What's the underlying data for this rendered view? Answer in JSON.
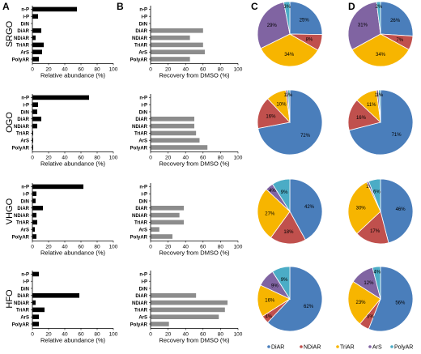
{
  "panel_letters": [
    "A",
    "B",
    "C",
    "D"
  ],
  "sample_names": [
    "SRGO",
    "OGO",
    "VHGO",
    "HFO"
  ],
  "colors": {
    "bar_black": "#000000",
    "bar_gray": "#8c8c8c",
    "pie": [
      "#4A7EBB",
      "#C0504D",
      "#F7B500",
      "#8064A2",
      "#4BACC6"
    ]
  },
  "legend": [
    "DiAR",
    "NDiAR",
    "TriAR",
    "ArS",
    "PolyAR"
  ],
  "chart_data": [
    {
      "type": "bar",
      "orientation": "horizontal",
      "panel": "A",
      "categories": [
        "n-P",
        "i-P",
        "DiN",
        "DiAR",
        "NDiAR",
        "TriAR",
        "ArS",
        "PolyAR"
      ],
      "xlabel": "Relative abundance (%)",
      "xlim": [
        0,
        100
      ],
      "xticks": [
        "0",
        "20",
        "40",
        "60",
        "80",
        "100"
      ],
      "rows": [
        {
          "sample": "SRGO",
          "values": [
            55,
            7,
            0,
            11,
            4,
            14,
            12,
            8
          ]
        },
        {
          "sample": "OGO",
          "values": [
            70,
            7,
            6,
            11,
            6,
            1,
            1,
            1
          ]
        },
        {
          "sample": "VHGO",
          "values": [
            63,
            5,
            4,
            13,
            5,
            6,
            3,
            5
          ]
        },
        {
          "sample": "HFO",
          "values": [
            8,
            0,
            0,
            58,
            4,
            15,
            8,
            8
          ]
        }
      ]
    },
    {
      "type": "bar",
      "orientation": "horizontal",
      "panel": "B",
      "categories": [
        "n-P",
        "i-P",
        "DiN",
        "DiAR",
        "NDiAR",
        "TriAR",
        "ArS",
        "PolyAR"
      ],
      "xlabel": "Recovery from DMSO (%)",
      "xlim": [
        0,
        100
      ],
      "xticks": [
        "0",
        "20",
        "40",
        "60",
        "80",
        "100"
      ],
      "rows": [
        {
          "sample": "SRGO",
          "values": [
            0,
            0,
            0,
            60,
            45,
            60,
            62,
            45
          ]
        },
        {
          "sample": "OGO",
          "values": [
            0,
            0,
            0,
            50,
            50,
            52,
            56,
            65
          ]
        },
        {
          "sample": "VHGO",
          "values": [
            0,
            0,
            0,
            38,
            33,
            38,
            10,
            25
          ]
        },
        {
          "sample": "HFO",
          "values": [
            0,
            0,
            0,
            52,
            88,
            85,
            78,
            21
          ]
        }
      ]
    },
    {
      "type": "pie",
      "panel": "C",
      "labels": [
        "DiAR",
        "NDiAR",
        "TriAR",
        "ArS",
        "PolyAR"
      ],
      "pies": [
        {
          "sample": "SRGO",
          "values": [
            25,
            8,
            34,
            29,
            3
          ],
          "value_labels": [
            "25%",
            "8%",
            "34%",
            "29%",
            "3%"
          ]
        },
        {
          "sample": "OGO",
          "values": [
            72,
            16,
            10,
            1,
            1
          ],
          "value_labels": [
            "72%",
            "16%",
            "10%",
            "1%",
            "1%"
          ]
        },
        {
          "sample": "VHGO",
          "values": [
            42,
            18,
            27,
            4,
            9
          ],
          "value_labels": [
            "42%",
            "18%",
            "27%",
            "4%",
            "9%"
          ]
        },
        {
          "sample": "HFO",
          "values": [
            62,
            4,
            16,
            9,
            9
          ],
          "value_labels": [
            "62%",
            "4%",
            "16%",
            "9%",
            "9%"
          ]
        }
      ]
    },
    {
      "type": "pie",
      "panel": "D",
      "labels": [
        "DiAR",
        "NDiAR",
        "TriAR",
        "ArS",
        "PolyAR"
      ],
      "pies": [
        {
          "sample": "SRGO",
          "values": [
            26,
            7,
            34,
            31,
            2
          ],
          "value_labels": [
            "26%",
            "7%",
            "34%",
            "31%",
            "2%"
          ]
        },
        {
          "sample": "OGO",
          "values": [
            71,
            16,
            11,
            1,
            1
          ],
          "value_labels": [
            "71%",
            "16%",
            "11%",
            "1%",
            "1%"
          ]
        },
        {
          "sample": "VHGO",
          "values": [
            46,
            17,
            30,
            1,
            6
          ],
          "value_labels": [
            "46%",
            "17%",
            "30%",
            "1%",
            "6%"
          ]
        },
        {
          "sample": "HFO",
          "values": [
            56,
            5,
            23,
            12,
            4
          ],
          "value_labels": [
            "56%",
            "5%",
            "23%",
            "12%",
            "4%"
          ]
        }
      ]
    }
  ]
}
